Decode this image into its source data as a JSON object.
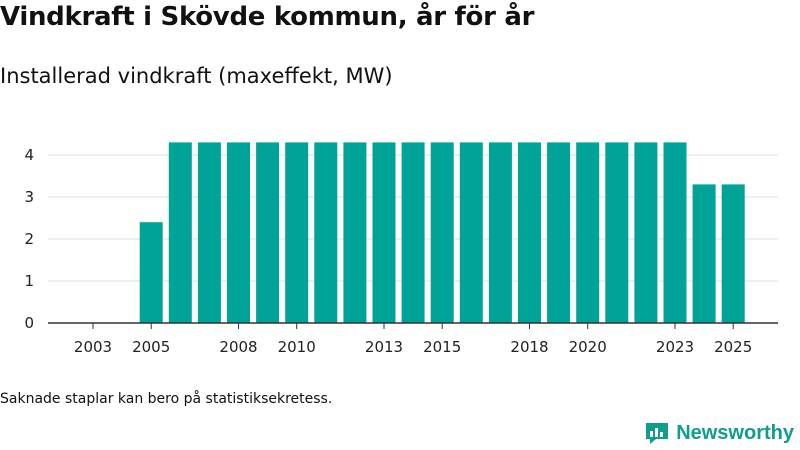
{
  "header": {
    "title": "Vindkraft i Skövde kommun, år för år",
    "subtitle": "Installerad vindkraft (maxeffekt, MW)"
  },
  "footnote": "Saknade staplar kan bero på statistiksekretess.",
  "brand": {
    "name": "Newsworthy",
    "icon": "newsworthy-logo-icon"
  },
  "colors": {
    "bar": "#00a398",
    "grid": "#dddddd",
    "axis": "#333333",
    "brand": "#0f9d8c"
  },
  "chart_data": {
    "type": "bar",
    "title": "Vindkraft i Skövde kommun, år för år",
    "subtitle": "Installerad vindkraft (maxeffekt, MW)",
    "xlabel": "",
    "ylabel": "",
    "ylim": [
      0,
      4.5
    ],
    "yticks": [
      0,
      1,
      2,
      3,
      4
    ],
    "grid": true,
    "categories": [
      2003,
      2004,
      2005,
      2006,
      2007,
      2008,
      2009,
      2010,
      2011,
      2012,
      2013,
      2014,
      2015,
      2016,
      2017,
      2018,
      2019,
      2020,
      2021,
      2022,
      2023,
      2024,
      2025
    ],
    "values": [
      null,
      null,
      2.4,
      4.3,
      4.3,
      4.3,
      4.3,
      4.3,
      4.3,
      4.3,
      4.3,
      4.3,
      4.3,
      4.3,
      4.3,
      4.3,
      4.3,
      4.3,
      4.3,
      4.3,
      4.3,
      3.3,
      3.3
    ],
    "xtick_labels": [
      2003,
      2005,
      2008,
      2010,
      2013,
      2015,
      2018,
      2020,
      2023,
      2025
    ]
  }
}
